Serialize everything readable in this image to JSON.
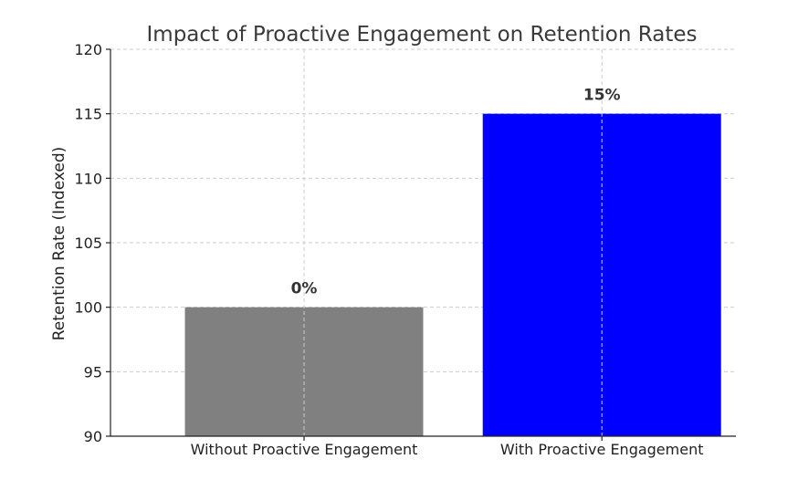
{
  "chart_data": {
    "type": "bar",
    "title": "Impact of Proactive Engagement on Retention Rates",
    "xlabel": "",
    "ylabel": "Retention Rate (Indexed)",
    "categories": [
      "Without Proactive Engagement",
      "With Proactive Engagement"
    ],
    "values": [
      100,
      115
    ],
    "data_labels": [
      "0%",
      "15%"
    ],
    "colors": [
      "#808080",
      "#0000ff"
    ],
    "ylim": [
      90,
      120
    ],
    "yticks": [
      90,
      95,
      100,
      105,
      110,
      115,
      120
    ],
    "grid": true,
    "legend": "none"
  }
}
